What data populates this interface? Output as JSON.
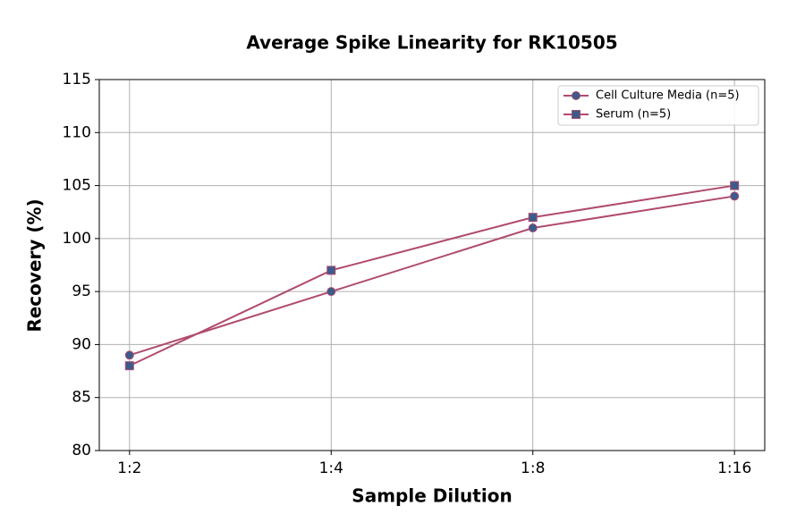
{
  "chart_data": {
    "type": "line",
    "title": "Average Spike Linearity for RK10505",
    "x_label": "Sample Dilution",
    "y_label": "Recovery (%)",
    "categories": [
      "1:2",
      "1:4",
      "1:8",
      "1:16"
    ],
    "series": [
      {
        "name": "Cell Culture Media (n=5)",
        "color": "#b04a6e",
        "marker": "circle",
        "marker_color": "#3b5b8c",
        "values": [
          89,
          95,
          101,
          104
        ]
      },
      {
        "name": "Serum (n=5)",
        "color": "#b04a6e",
        "marker": "square",
        "marker_color": "#3b5b8c",
        "values": [
          88,
          97,
          102,
          105
        ]
      }
    ],
    "ylim": [
      80,
      115
    ],
    "yticks": [
      80,
      85,
      90,
      95,
      100,
      105,
      110,
      115
    ],
    "grid": true,
    "legend": "upper right"
  }
}
